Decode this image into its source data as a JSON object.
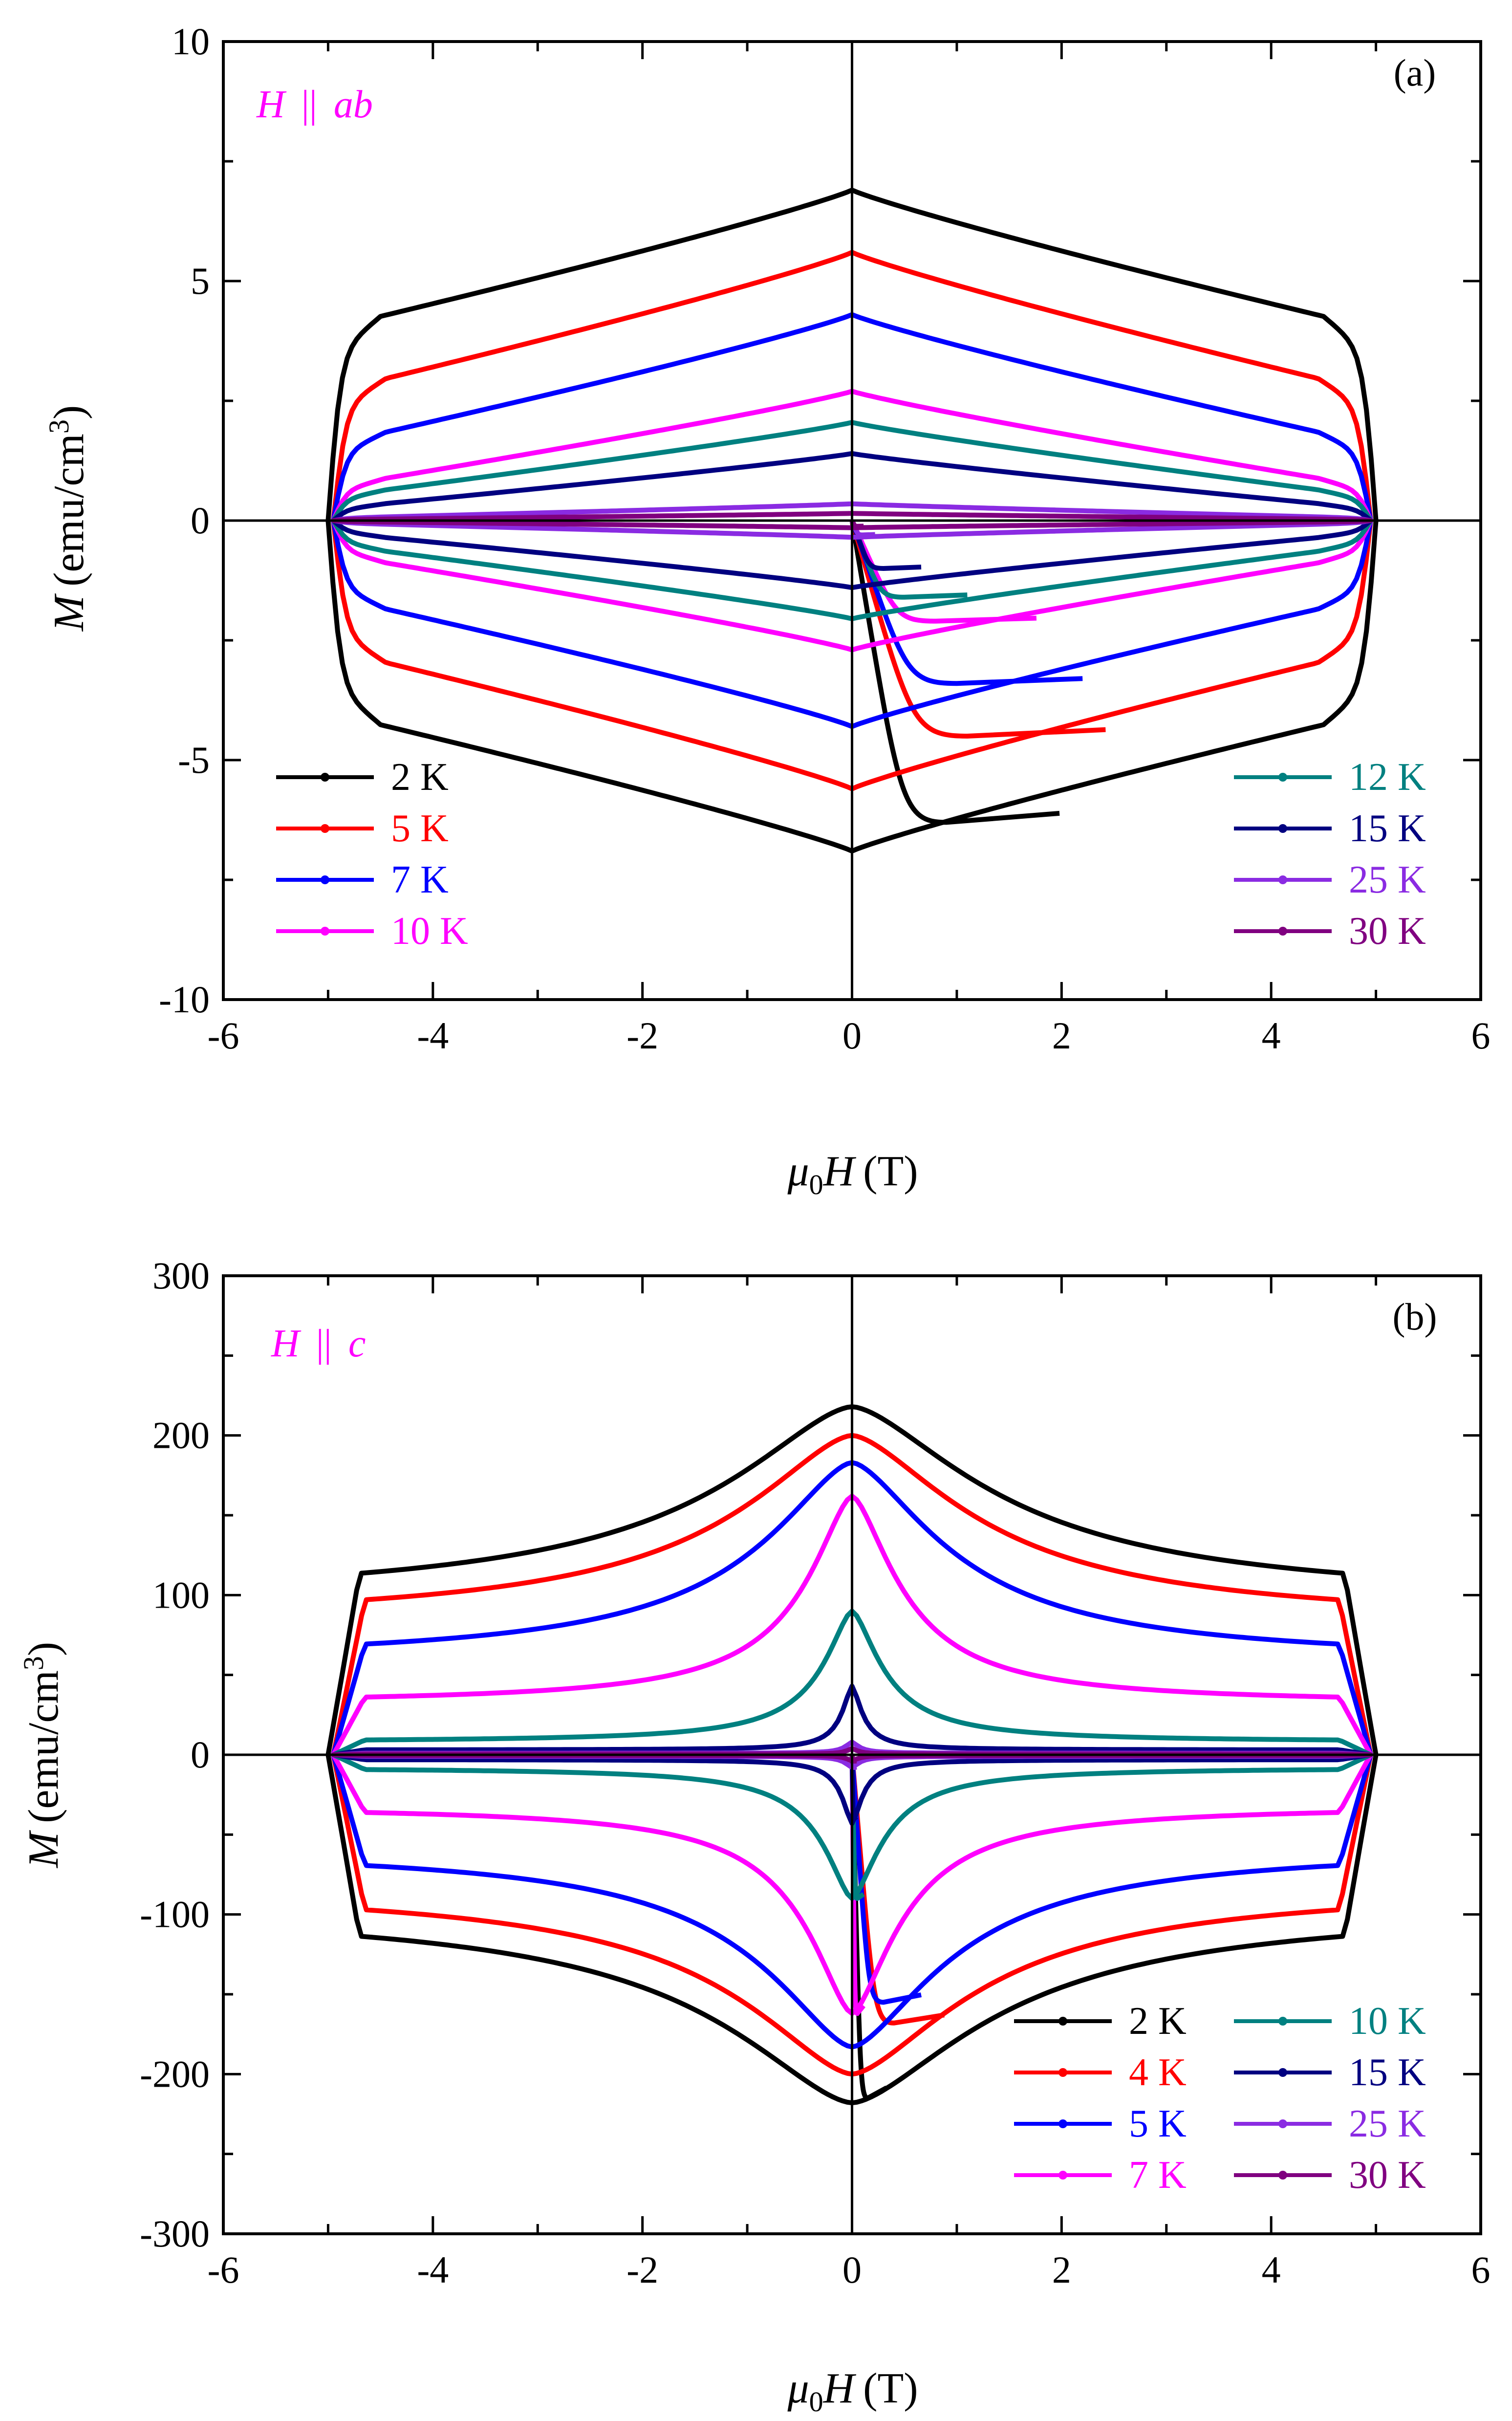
{
  "chart_data": [
    {
      "type": "line",
      "panel_label": "(a)",
      "annotation": {
        "var": "H",
        "sep": "||",
        "dir": "ab",
        "color": "#ff00ff"
      },
      "xlabel": {
        "mu": "μ",
        "sub": "0",
        "var": "H",
        "unit": "(T)"
      },
      "ylabel": {
        "var": "M",
        "unit": "(emu/cm",
        "sup": "3",
        "close": ")"
      },
      "xlim": [
        -6,
        6
      ],
      "ylim": [
        -10,
        10
      ],
      "xticks": [
        "-6",
        "-4",
        "-2",
        "0",
        "2",
        "4",
        "6"
      ],
      "yticks": [
        "-10",
        "-5",
        "0",
        "5",
        "10"
      ],
      "xtick_values": [
        -6,
        -4,
        -2,
        0,
        2,
        4,
        6
      ],
      "ytick_values": [
        -10,
        -5,
        0,
        5,
        10
      ],
      "legend_left": [
        "2 K",
        "5 K",
        "7 K",
        "10 K"
      ],
      "legend_right": [
        "12 K",
        "15 K",
        "25 K",
        "30 K"
      ],
      "series": [
        {
          "name": "2 K",
          "color": "#000000",
          "Hc": 5.0,
          "M0": 6.9,
          "Me": 4.0,
          "dip": {
            "x": 0.9,
            "y": -6.3
          },
          "marker": "square"
        },
        {
          "name": "5 K",
          "color": "#ff0000",
          "Hc": 4.95,
          "M0": 5.6,
          "Me": 2.7,
          "dip": {
            "x": 1.1,
            "y": -4.5
          },
          "marker": "circle"
        },
        {
          "name": "7 K",
          "color": "#0000ff",
          "Hc": 4.95,
          "M0": 4.3,
          "Me": 1.6,
          "dip": {
            "x": 1.0,
            "y": -3.4
          },
          "marker": "triangle"
        },
        {
          "name": "10 K",
          "color": "#ff00ff",
          "Hc": 4.95,
          "M0": 2.7,
          "Me": 0.7,
          "dip": {
            "x": 0.8,
            "y": -2.1
          },
          "marker": "triangle-down"
        },
        {
          "name": "12 K",
          "color": "#008080",
          "Hc": 4.95,
          "M0": 2.05,
          "Me": 0.5,
          "dip": {
            "x": 0.5,
            "y": -1.6
          },
          "marker": "diamond"
        },
        {
          "name": "15 K",
          "color": "#000080",
          "Hc": 4.95,
          "M0": 1.4,
          "Me": 0.25,
          "dip": {
            "x": 0.3,
            "y": -1.0
          },
          "marker": "triangle-left"
        },
        {
          "name": "25 K",
          "color": "#8a2be2",
          "Hc": 4.95,
          "M0": 0.35,
          "Me": 0.05,
          "dip": {
            "x": 0.1,
            "y": -0.3
          },
          "marker": "triangle-right"
        },
        {
          "name": "30 K",
          "color": "#800080",
          "Hc": 4.95,
          "M0": 0.15,
          "Me": 0.02,
          "dip": {
            "x": 0.05,
            "y": -0.12
          },
          "marker": "star"
        }
      ]
    },
    {
      "type": "line",
      "panel_label": "(b)",
      "annotation": {
        "var": "H",
        "sep": "||",
        "dir": "c",
        "color": "#ff00ff"
      },
      "xlabel": {
        "mu": "μ",
        "sub": "0",
        "var": "H",
        "unit": "(T)"
      },
      "ylabel": {
        "var": "M",
        "unit": "(emu/cm",
        "sup": "3",
        "close": ")"
      },
      "xlim": [
        -6,
        6
      ],
      "ylim": [
        -300,
        300
      ],
      "xticks": [
        "-6",
        "-4",
        "-2",
        "0",
        "2",
        "4",
        "6"
      ],
      "yticks": [
        "-300",
        "-200",
        "-100",
        "0",
        "100",
        "200",
        "300"
      ],
      "xtick_values": [
        -6,
        -4,
        -2,
        0,
        2,
        4,
        6
      ],
      "ytick_values": [
        -300,
        -200,
        -100,
        0,
        100,
        200,
        300
      ],
      "legend_left": [
        "2 K",
        "4 K",
        "5 K",
        "7 K"
      ],
      "legend_right": [
        "10 K",
        "15 K",
        "25 K",
        "30 K"
      ],
      "series": [
        {
          "name": "2 K",
          "color": "#000000",
          "Hc": 5.0,
          "M0": 218,
          "Me": 95,
          "w": 1.6,
          "dip": {
            "x": 0.15,
            "y": -215
          },
          "marker": "square"
        },
        {
          "name": "4 K",
          "color": "#ff0000",
          "Hc": 4.95,
          "M0": 200,
          "Me": 82,
          "w": 1.4,
          "dip": {
            "x": 0.4,
            "y": -168
          },
          "marker": "circle"
        },
        {
          "name": "5 K",
          "color": "#0000ff",
          "Hc": 4.95,
          "M0": 183,
          "Me": 58,
          "w": 1.1,
          "dip": {
            "x": 0.3,
            "y": -155
          },
          "marker": "triangle"
        },
        {
          "name": "7 K",
          "color": "#ff00ff",
          "Hc": 4.95,
          "M0": 162,
          "Me": 32,
          "w": 0.55,
          "dip": {
            "x": 0.05,
            "y": -162
          },
          "marker": "triangle-down"
        },
        {
          "name": "10 K",
          "color": "#008080",
          "Hc": 4.95,
          "M0": 90,
          "Me": 8,
          "w": 0.35,
          "dip": {
            "x": 0.05,
            "y": -90
          },
          "marker": "diamond"
        },
        {
          "name": "15 K",
          "color": "#000080",
          "Hc": 4.95,
          "M0": 43,
          "Me": 3,
          "w": 0.12,
          "dip": {
            "x": 0.02,
            "y": -40
          },
          "marker": "triangle-left"
        },
        {
          "name": "25 K",
          "color": "#8a2be2",
          "Hc": 4.95,
          "M0": 8,
          "Me": 1,
          "w": 0.08,
          "dip": {
            "x": 0.02,
            "y": -8
          },
          "marker": "triangle-right"
        },
        {
          "name": "30 K",
          "color": "#800080",
          "Hc": 4.95,
          "M0": 4,
          "Me": 0.5,
          "w": 0.06,
          "dip": {
            "x": 0.02,
            "y": -4
          },
          "marker": "star"
        }
      ]
    }
  ]
}
